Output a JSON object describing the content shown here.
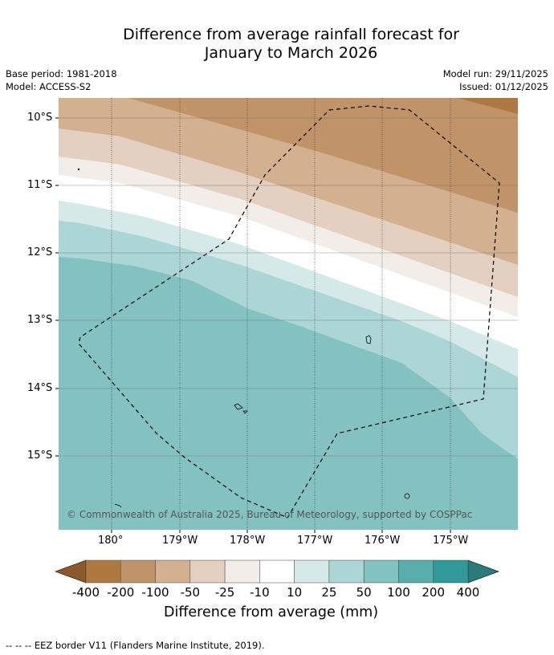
{
  "title_line1": "Difference from average rainfall forecast for",
  "title_line2": "January to March 2026",
  "base_period": "Base period: 1981-2018",
  "model": "Model: ACCESS-S2",
  "model_run": "Model run: 29/11/2025",
  "issued": "Issued: 01/12/2025",
  "lat_labels": [
    "10°S",
    "11°S",
    "12°S",
    "13°S",
    "14°S",
    "15°S"
  ],
  "lon_labels": [
    "180°",
    "179°W",
    "178°W",
    "177°W",
    "176°W",
    "175°W"
  ],
  "copyright": "© Commonwealth of Australia 2025, Bureau of Meteorology, supported by COSPPac",
  "colorbar": {
    "ticks": [
      "-400",
      "-200",
      "-100",
      "-50",
      "-25",
      "-10",
      "10",
      "25",
      "50",
      "100",
      "200",
      "400"
    ],
    "colors": [
      "#ae7841",
      "#c09369",
      "#d3b08f",
      "#e3d0c0",
      "#f2ede8",
      "#ffffff",
      "#d4e9e8",
      "#acd5d5",
      "#84c1c1",
      "#5aadad",
      "#309a98"
    ],
    "under_color": "#8c5a2a",
    "over_color": "#2c7b7b",
    "label": "Difference from average (mm)"
  },
  "footnote": "--  --  -- EEZ border V11 (Flanders Marine Institute, 2019)."
}
